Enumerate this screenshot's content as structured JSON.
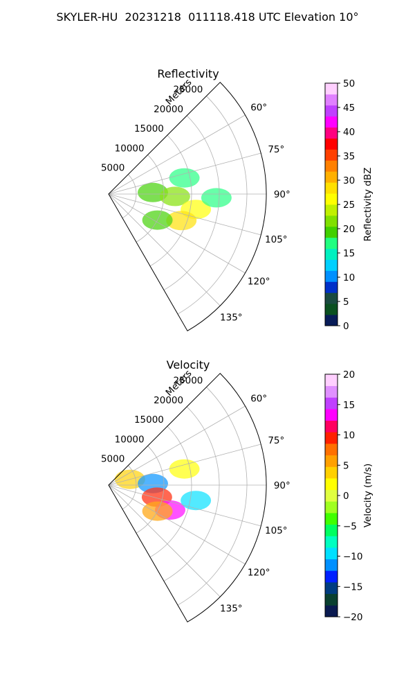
{
  "title": "SKYLER-HU  20231218  011118.418 UTC Elevation 10°",
  "chart_data": [
    {
      "type": "polar_ppi",
      "title": "Reflectivity",
      "r_axis_label": "Meters",
      "r_ticks": [
        5000,
        10000,
        15000,
        20000,
        25000
      ],
      "r_tick_labels": [
        "5000",
        "10000",
        "15000",
        "20000",
        "25000"
      ],
      "r_max": 28500,
      "theta_range_deg": [
        45,
        150
      ],
      "theta_ticks_deg": [
        60,
        75,
        90,
        105,
        120,
        135
      ],
      "theta_tick_labels": [
        "60°",
        "75°",
        "90°",
        "105°",
        "120°",
        "135°"
      ],
      "grid": true,
      "colorbar": {
        "label": "Reflectivity dBZ",
        "vmin": 0,
        "vmax": 50,
        "ticks": [
          0,
          5,
          10,
          15,
          20,
          25,
          30,
          35,
          40,
          45,
          50
        ],
        "tick_labels": [
          "0",
          "5",
          "10",
          "15",
          "20",
          "25",
          "30",
          "35",
          "40",
          "45",
          "50"
        ],
        "colormap": [
          "#081c58",
          "#0a5020",
          "#1a4a40",
          "#0030c8",
          "#0090ff",
          "#00d0ff",
          "#00f0c0",
          "#20ff80",
          "#40d000",
          "#80e000",
          "#c0f000",
          "#ffff00",
          "#ffe000",
          "#ffb000",
          "#ff8000",
          "#ff4000",
          "#ff0000",
          "#ff0080",
          "#ff00ff",
          "#c040ff",
          "#e080ff",
          "#ffd0ff"
        ]
      },
      "echoes": [
        {
          "theta_deg": 88,
          "r": 8000,
          "value": 20
        },
        {
          "theta_deg": 92,
          "r": 12000,
          "value": 22
        },
        {
          "theta_deg": 100,
          "r": 16000,
          "value": 27
        },
        {
          "theta_deg": 110,
          "r": 14000,
          "value": 28
        },
        {
          "theta_deg": 118,
          "r": 10000,
          "value": 20
        },
        {
          "theta_deg": 78,
          "r": 14000,
          "value": 18
        },
        {
          "theta_deg": 92,
          "r": 19500,
          "value": 17
        }
      ]
    },
    {
      "type": "polar_ppi",
      "title": "Velocity",
      "r_axis_label": "Meters",
      "r_ticks": [
        5000,
        10000,
        15000,
        20000,
        25000
      ],
      "r_tick_labels": [
        "5000",
        "10000",
        "15000",
        "20000",
        "25000"
      ],
      "r_max": 28500,
      "theta_range_deg": [
        45,
        150
      ],
      "theta_ticks_deg": [
        60,
        75,
        90,
        105,
        120,
        135
      ],
      "theta_tick_labels": [
        "60°",
        "75°",
        "90°",
        "105°",
        "120°",
        "135°"
      ],
      "grid": true,
      "colorbar": {
        "label": "Velocity (m/s)",
        "vmin": -20,
        "vmax": 20,
        "ticks": [
          -20,
          -15,
          -10,
          -5,
          0,
          5,
          10,
          15,
          20
        ],
        "tick_labels": [
          "−20",
          "−15",
          "−10",
          "−5",
          "0",
          "5",
          "10",
          "15",
          "20"
        ],
        "colormap": [
          "#0a1a50",
          "#0a4030",
          "#003c80",
          "#0020ff",
          "#0090ff",
          "#00e0ff",
          "#00ffc0",
          "#00ff60",
          "#40ff00",
          "#a0ff20",
          "#e0ff40",
          "#ffff00",
          "#ffd000",
          "#ffa000",
          "#ff7000",
          "#ff2000",
          "#ff0060",
          "#ff00ff",
          "#c040ff",
          "#e090ff",
          "#ffd0ff"
        ]
      },
      "echoes": [
        {
          "theta_deg": 75,
          "r": 4000,
          "value": 3
        },
        {
          "theta_deg": 88,
          "r": 8000,
          "value": -12
        },
        {
          "theta_deg": 104,
          "r": 9000,
          "value": 10
        },
        {
          "theta_deg": 112,
          "r": 12000,
          "value": 14
        },
        {
          "theta_deg": 100,
          "r": 16000,
          "value": -10
        },
        {
          "theta_deg": 118,
          "r": 10000,
          "value": 5
        },
        {
          "theta_deg": 78,
          "r": 14000,
          "value": 2
        }
      ]
    }
  ]
}
